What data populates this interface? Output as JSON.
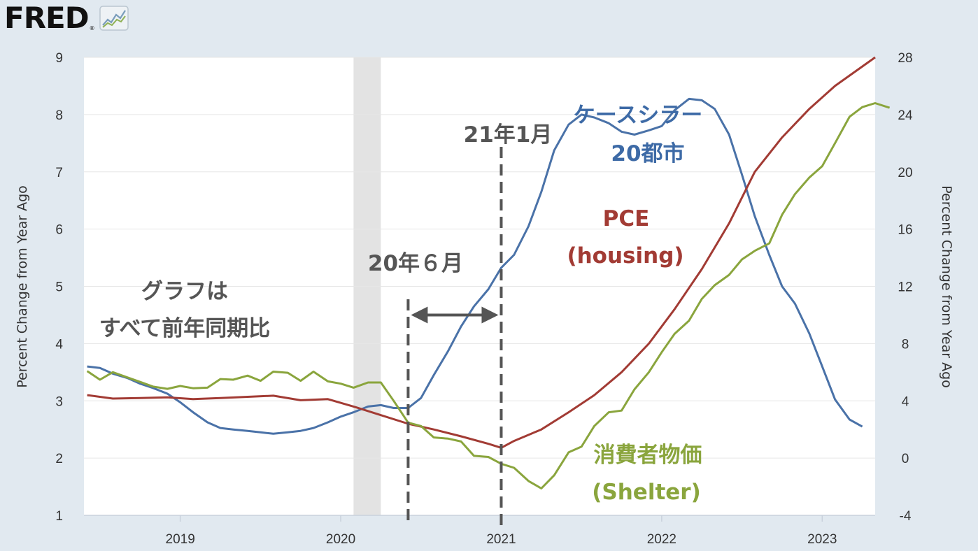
{
  "logo": {
    "text": "FRED",
    "registered": "®",
    "icon": "line-chart-icon"
  },
  "chart_data": {
    "type": "line",
    "xlim": [
      2018.4,
      2023.33
    ],
    "x_ticks": [
      2019,
      2020,
      2021,
      2022,
      2023
    ],
    "x_tick_labels": [
      "2019",
      "2020",
      "2021",
      "2022",
      "2023"
    ],
    "left_axis": {
      "label": "Percent Change from Year Ago",
      "ylim": [
        1,
        9
      ],
      "ticks": [
        1,
        2,
        3,
        4,
        5,
        6,
        7,
        8,
        9
      ]
    },
    "right_axis": {
      "label": "Percent Change from Year Ago",
      "ylim": [
        -4,
        28
      ],
      "ticks": [
        -4,
        0,
        4,
        8,
        12,
        16,
        20,
        24,
        28
      ]
    },
    "grid": true,
    "recession": {
      "start": 2020.08,
      "end": 2020.25
    },
    "series": [
      {
        "key": "case_shiller",
        "axis": "right",
        "color": "#4a72a8",
        "points": [
          [
            2018.42,
            6.4
          ],
          [
            2018.5,
            6.3
          ],
          [
            2018.58,
            5.9
          ],
          [
            2018.67,
            5.6
          ],
          [
            2018.75,
            5.2
          ],
          [
            2018.83,
            4.9
          ],
          [
            2018.92,
            4.5
          ],
          [
            2019.0,
            3.9
          ],
          [
            2019.08,
            3.2
          ],
          [
            2019.17,
            2.5
          ],
          [
            2019.25,
            2.1
          ],
          [
            2019.33,
            2.0
          ],
          [
            2019.42,
            1.9
          ],
          [
            2019.5,
            1.8
          ],
          [
            2019.58,
            1.7
          ],
          [
            2019.67,
            1.8
          ],
          [
            2019.75,
            1.9
          ],
          [
            2019.83,
            2.1
          ],
          [
            2019.92,
            2.5
          ],
          [
            2020.0,
            2.9
          ],
          [
            2020.08,
            3.2
          ],
          [
            2020.17,
            3.6
          ],
          [
            2020.25,
            3.7
          ],
          [
            2020.33,
            3.5
          ],
          [
            2020.42,
            3.5
          ],
          [
            2020.5,
            4.2
          ],
          [
            2020.58,
            5.8
          ],
          [
            2020.67,
            7.5
          ],
          [
            2020.75,
            9.2
          ],
          [
            2020.83,
            10.6
          ],
          [
            2020.92,
            11.8
          ],
          [
            2021.0,
            13.3
          ],
          [
            2021.08,
            14.2
          ],
          [
            2021.17,
            16.2
          ],
          [
            2021.25,
            18.6
          ],
          [
            2021.33,
            21.5
          ],
          [
            2021.42,
            23.3
          ],
          [
            2021.5,
            24.0
          ],
          [
            2021.58,
            23.8
          ],
          [
            2021.67,
            23.4
          ],
          [
            2021.75,
            22.8
          ],
          [
            2021.83,
            22.6
          ],
          [
            2021.92,
            22.9
          ],
          [
            2022.0,
            23.2
          ],
          [
            2022.08,
            24.3
          ],
          [
            2022.17,
            25.1
          ],
          [
            2022.25,
            25.0
          ],
          [
            2022.33,
            24.4
          ],
          [
            2022.42,
            22.6
          ],
          [
            2022.5,
            19.8
          ],
          [
            2022.58,
            16.9
          ],
          [
            2022.67,
            14.2
          ],
          [
            2022.75,
            12.0
          ],
          [
            2022.83,
            10.8
          ],
          [
            2022.92,
            8.7
          ],
          [
            2023.0,
            6.4
          ],
          [
            2023.08,
            4.1
          ],
          [
            2023.17,
            2.7
          ],
          [
            2023.25,
            2.2
          ]
        ]
      },
      {
        "key": "pce_housing",
        "axis": "left",
        "color": "#a23b34",
        "points": [
          [
            2018.42,
            3.1
          ],
          [
            2018.58,
            3.04
          ],
          [
            2018.75,
            3.05
          ],
          [
            2018.92,
            3.06
          ],
          [
            2019.08,
            3.03
          ],
          [
            2019.25,
            3.05
          ],
          [
            2019.42,
            3.07
          ],
          [
            2019.58,
            3.09
          ],
          [
            2019.75,
            3.01
          ],
          [
            2019.92,
            3.03
          ],
          [
            2020.08,
            2.9
          ],
          [
            2020.25,
            2.75
          ],
          [
            2020.42,
            2.6
          ],
          [
            2020.58,
            2.5
          ],
          [
            2020.75,
            2.38
          ],
          [
            2020.92,
            2.25
          ],
          [
            2021.0,
            2.18
          ],
          [
            2021.08,
            2.3
          ],
          [
            2021.25,
            2.5
          ],
          [
            2021.42,
            2.8
          ],
          [
            2021.58,
            3.1
          ],
          [
            2021.75,
            3.5
          ],
          [
            2021.92,
            4.0
          ],
          [
            2022.08,
            4.6
          ],
          [
            2022.25,
            5.3
          ],
          [
            2022.42,
            6.1
          ],
          [
            2022.58,
            7.0
          ],
          [
            2022.75,
            7.6
          ],
          [
            2022.92,
            8.1
          ],
          [
            2023.08,
            8.5
          ],
          [
            2023.33,
            9.0
          ]
        ]
      },
      {
        "key": "cpi_shelter",
        "axis": "left",
        "color": "#8aa53d",
        "points": [
          [
            2018.42,
            3.52
          ],
          [
            2018.5,
            3.37
          ],
          [
            2018.58,
            3.5
          ],
          [
            2018.67,
            3.41
          ],
          [
            2018.75,
            3.33
          ],
          [
            2018.83,
            3.25
          ],
          [
            2018.92,
            3.21
          ],
          [
            2019.0,
            3.26
          ],
          [
            2019.08,
            3.22
          ],
          [
            2019.17,
            3.23
          ],
          [
            2019.25,
            3.38
          ],
          [
            2019.33,
            3.37
          ],
          [
            2019.42,
            3.44
          ],
          [
            2019.5,
            3.35
          ],
          [
            2019.58,
            3.51
          ],
          [
            2019.67,
            3.49
          ],
          [
            2019.75,
            3.35
          ],
          [
            2019.83,
            3.51
          ],
          [
            2019.92,
            3.34
          ],
          [
            2020.0,
            3.3
          ],
          [
            2020.08,
            3.23
          ],
          [
            2020.17,
            3.32
          ],
          [
            2020.25,
            3.32
          ],
          [
            2020.33,
            3.0
          ],
          [
            2020.42,
            2.62
          ],
          [
            2020.5,
            2.56
          ],
          [
            2020.58,
            2.36
          ],
          [
            2020.67,
            2.34
          ],
          [
            2020.75,
            2.29
          ],
          [
            2020.83,
            2.04
          ],
          [
            2020.92,
            2.02
          ],
          [
            2021.0,
            1.9
          ],
          [
            2021.08,
            1.83
          ],
          [
            2021.17,
            1.6
          ],
          [
            2021.25,
            1.47
          ],
          [
            2021.33,
            1.7
          ],
          [
            2021.42,
            2.1
          ],
          [
            2021.5,
            2.2
          ],
          [
            2021.58,
            2.56
          ],
          [
            2021.67,
            2.8
          ],
          [
            2021.75,
            2.83
          ],
          [
            2021.83,
            3.2
          ],
          [
            2021.92,
            3.5
          ],
          [
            2022.0,
            3.85
          ],
          [
            2022.08,
            4.17
          ],
          [
            2022.17,
            4.4
          ],
          [
            2022.25,
            4.78
          ],
          [
            2022.33,
            5.02
          ],
          [
            2022.42,
            5.2
          ],
          [
            2022.5,
            5.47
          ],
          [
            2022.58,
            5.62
          ],
          [
            2022.67,
            5.75
          ],
          [
            2022.75,
            6.25
          ],
          [
            2022.83,
            6.61
          ],
          [
            2022.92,
            6.9
          ],
          [
            2023.0,
            7.1
          ],
          [
            2023.08,
            7.5
          ],
          [
            2023.17,
            7.96
          ],
          [
            2023.25,
            8.13
          ],
          [
            2023.33,
            8.2
          ],
          [
            2023.42,
            8.12
          ]
        ]
      }
    ],
    "annotations": [
      {
        "key": "case_shiller_1",
        "text": "ケースシラー"
      },
      {
        "key": "case_shiller_2",
        "text": "20都市"
      },
      {
        "key": "pce_1",
        "text": "PCE"
      },
      {
        "key": "pce_2",
        "text": "(housing)"
      },
      {
        "key": "shelter_1",
        "text": "消費者物価"
      },
      {
        "key": "shelter_2",
        "text": "(Shelter)"
      },
      {
        "key": "jan21",
        "text": "21年1月"
      },
      {
        "key": "jun20",
        "text": "20年６月"
      },
      {
        "key": "note_1",
        "text": "グラフは"
      },
      {
        "key": "note_2",
        "text": "すべて前年同期比"
      }
    ],
    "vlines": [
      2020.42,
      2021.0
    ],
    "arrow": {
      "from": 2020.42,
      "to": 2021.0,
      "y": 4.5
    }
  }
}
